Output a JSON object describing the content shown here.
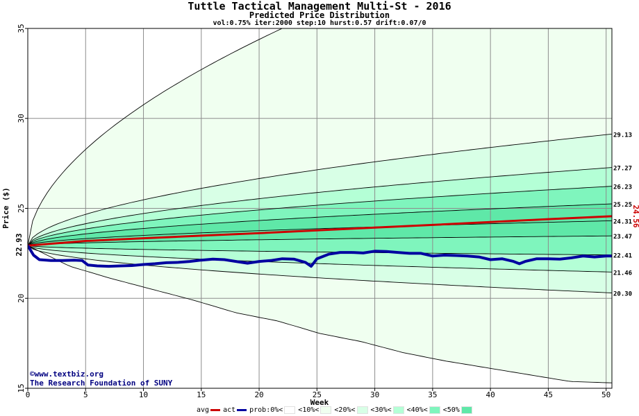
{
  "header": {
    "title": "Tuttle Tactical Management Multi-St - 2016",
    "subtitle": "Predicted Price Distribution",
    "params": "vol:0.75% iter:2000 step:10 hurst:0.57 drift:0.07/0"
  },
  "footer": {
    "copyright_line1": "©www.textbiz.org",
    "copyright_line2": "The Research Foundation of SUNY"
  },
  "legend": {
    "items": [
      {
        "label": "avg",
        "color": "#cc0000",
        "kind": "line"
      },
      {
        "label": "act",
        "color": "#0000a0",
        "kind": "line"
      },
      {
        "label": "prob:0%<",
        "color": "#ffffff",
        "kind": "swatch"
      },
      {
        "label": "<10%<",
        "color": "#f0fff0",
        "kind": "swatch"
      },
      {
        "label": "<20%<",
        "color": "#d8ffe6",
        "kind": "swatch"
      },
      {
        "label": "<30%<",
        "color": "#b4ffd6",
        "kind": "swatch"
      },
      {
        "label": "<40%<",
        "color": "#7ff5bd",
        "kind": "swatch"
      },
      {
        "label": "<50%",
        "color": "#5fe8a8",
        "kind": "swatch"
      }
    ]
  },
  "chart_data": {
    "type": "line",
    "xlabel": "Week",
    "ylabel": "Price ($)",
    "xlim": [
      0,
      50.5
    ],
    "ylim": [
      15,
      35
    ],
    "x_ticks": [
      0,
      5,
      10,
      15,
      20,
      25,
      30,
      35,
      40,
      45,
      50
    ],
    "y_ticks": [
      15,
      20,
      25,
      30,
      35
    ],
    "grid": true,
    "start_price": 22.93,
    "start_price_label": "22.93",
    "avg_end_label": "24.56",
    "band_colors": [
      "#f0fff0",
      "#d8ffe6",
      "#b4ffd6",
      "#7ff5bd",
      "#5fe8a8"
    ],
    "percentiles": [
      {
        "label": "",
        "end": 15.3,
        "shape": [
          0,
          0.15,
          0.24,
          0.32,
          0.4,
          0.49,
          0.55,
          0.64,
          0.7,
          0.78,
          0.84,
          0.89,
          0.94,
          0.99,
          1.0
        ]
      },
      {
        "label": "20.30",
        "end": 20.3
      },
      {
        "label": "21.46",
        "end": 21.46
      },
      {
        "label": "22.41",
        "end": 22.41
      },
      {
        "label": "23.47",
        "end": 23.47
      },
      {
        "label": "24.31",
        "end": 24.31
      },
      {
        "label": "25.25",
        "end": 25.25
      },
      {
        "label": "26.23",
        "end": 26.23
      },
      {
        "label": "27.27",
        "end": 27.27
      },
      {
        "label": "29.13",
        "end": 29.13
      },
      {
        "label": "",
        "end": 42.0
      }
    ],
    "series": [
      {
        "name": "avg",
        "color": "#cc0000",
        "x": [
          0,
          5,
          10,
          15,
          20,
          25,
          30,
          35,
          40,
          45,
          50.5
        ],
        "y": [
          22.93,
          23.19,
          23.34,
          23.48,
          23.62,
          23.78,
          23.93,
          24.08,
          24.24,
          24.4,
          24.56
        ]
      },
      {
        "name": "act",
        "color": "#0000a0",
        "x": [
          0,
          0.5,
          1,
          2,
          3,
          4,
          4.7,
          5.2,
          6,
          7,
          8,
          9,
          10,
          11,
          12,
          13,
          14,
          15,
          16,
          17,
          18,
          19,
          20,
          21,
          22,
          23,
          24,
          24.5,
          25,
          26,
          27,
          28,
          29,
          30,
          31,
          32,
          33,
          34,
          35,
          36,
          37,
          38,
          39,
          40,
          41,
          42,
          42.5,
          43,
          44,
          45,
          46,
          47,
          48,
          49,
          50,
          50.5
        ],
        "y": [
          22.93,
          22.4,
          22.15,
          22.1,
          22.1,
          22.12,
          22.1,
          21.85,
          21.8,
          21.78,
          21.8,
          21.82,
          21.88,
          21.92,
          21.98,
          22.0,
          22.05,
          22.12,
          22.18,
          22.15,
          22.05,
          21.95,
          22.05,
          22.1,
          22.2,
          22.18,
          22.0,
          21.78,
          22.2,
          22.45,
          22.55,
          22.55,
          22.52,
          22.62,
          22.6,
          22.55,
          22.5,
          22.5,
          22.35,
          22.4,
          22.38,
          22.35,
          22.3,
          22.15,
          22.2,
          22.05,
          21.92,
          22.05,
          22.2,
          22.2,
          22.18,
          22.25,
          22.35,
          22.3,
          22.35,
          22.35
        ]
      }
    ]
  }
}
